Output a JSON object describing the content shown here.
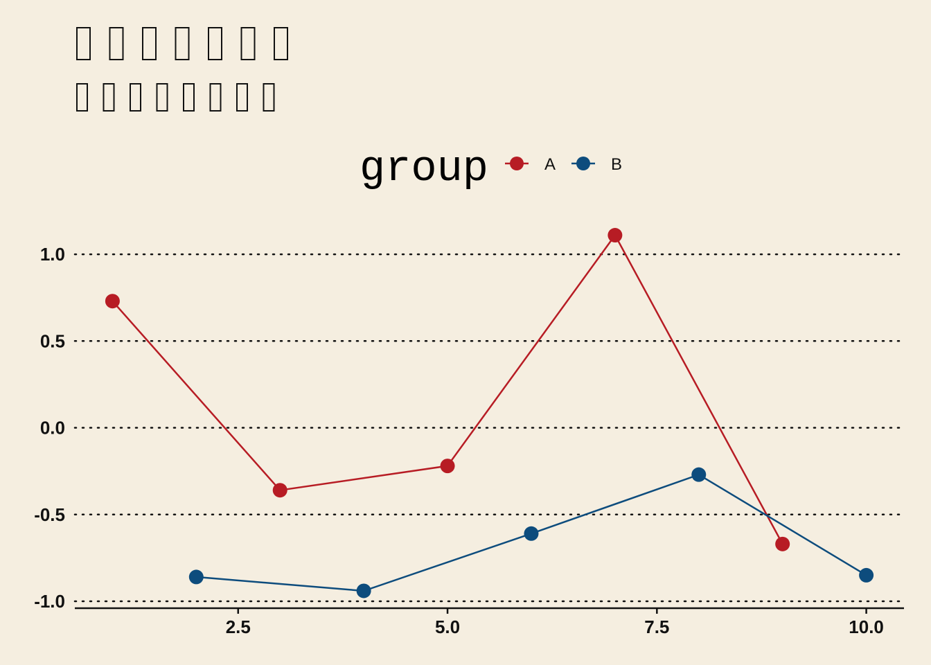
{
  "chart_data": {
    "type": "line",
    "title": "□□□□□□□",
    "subtitle": "□□□□□□□□",
    "legend_title": "group",
    "legend_position": "top",
    "grid": "horizontal-dotted",
    "xlim": [
      0.55,
      10.45
    ],
    "ylim": [
      -1.04,
      1.18
    ],
    "x_ticks": [
      {
        "value": 2.5,
        "label": "2.5"
      },
      {
        "value": 5.0,
        "label": "5.0"
      },
      {
        "value": 7.5,
        "label": "7.5"
      },
      {
        "value": 10.0,
        "label": "10.0"
      }
    ],
    "y_ticks": [
      {
        "value": 1.0,
        "label": "1.0"
      },
      {
        "value": 0.5,
        "label": "0.5"
      },
      {
        "value": 0.0,
        "label": "0.0"
      },
      {
        "value": -0.5,
        "label": "-0.5"
      },
      {
        "value": -1.0,
        "label": "-1.0"
      }
    ],
    "series": [
      {
        "name": "A",
        "color": "#b71c24",
        "x": [
          1,
          3,
          5,
          7,
          9
        ],
        "y": [
          0.73,
          -0.36,
          -0.22,
          1.11,
          -0.67
        ]
      },
      {
        "name": "B",
        "color": "#0d4c7d",
        "x": [
          2,
          4,
          6,
          8,
          10
        ],
        "y": [
          -0.86,
          -0.94,
          -0.61,
          -0.27,
          -0.85
        ]
      }
    ]
  }
}
